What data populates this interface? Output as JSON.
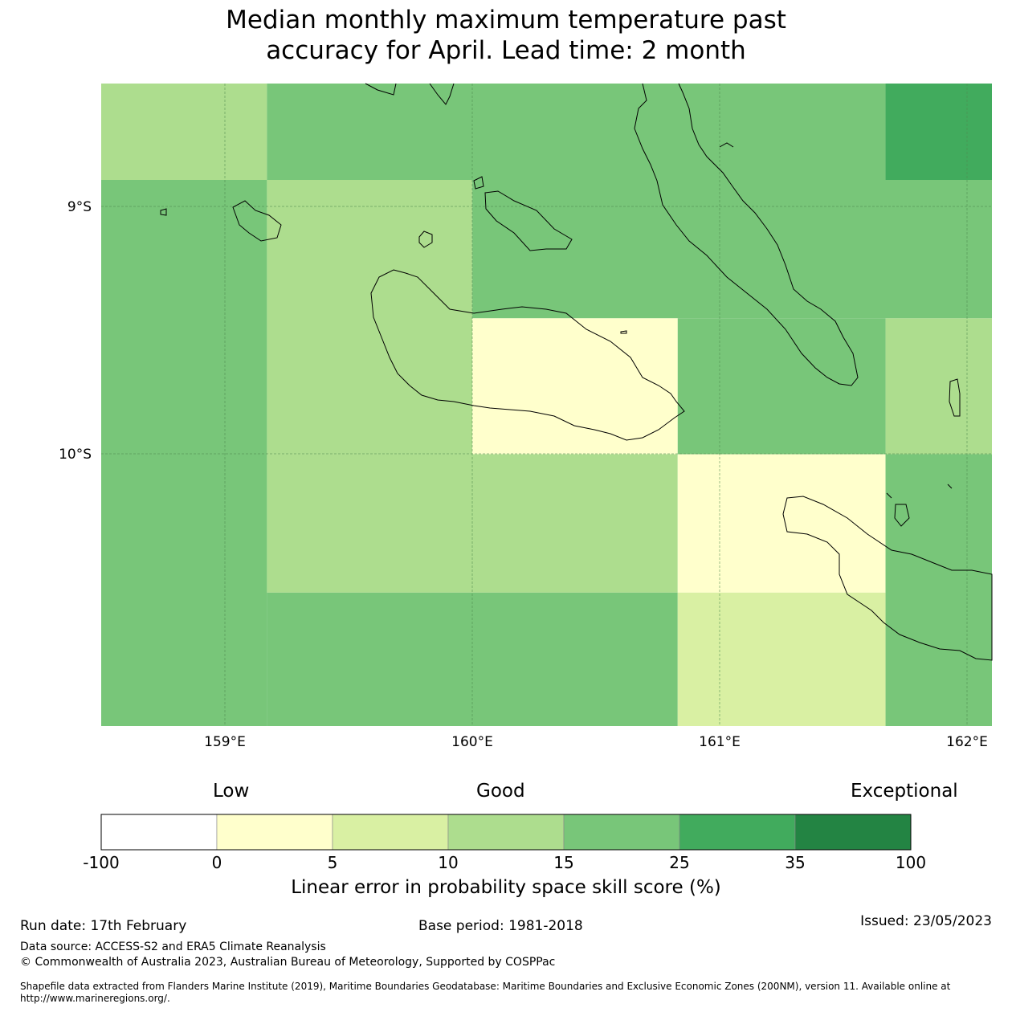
{
  "title_line1": "Median monthly maximum temperature past",
  "title_line2": "accuracy for April. Lead time: 2 month",
  "map": {
    "lat_labels": [
      "9°S",
      "10°S"
    ],
    "lon_labels": [
      "159°E",
      "160°E",
      "161°E",
      "162°E"
    ],
    "extent": {
      "lon_min": 158.5,
      "lon_max": 162.1,
      "lat_top": -8.5,
      "lat_bottom": -11.1
    },
    "cells": [
      {
        "lon0": 158.5,
        "lon1": 159.17,
        "lat0": -8.5,
        "lat1": -8.89,
        "cat": "10-15"
      },
      {
        "lon0": 159.17,
        "lon1": 161.67,
        "lat0": -8.5,
        "lat1": -8.89,
        "cat": "15-25"
      },
      {
        "lon0": 161.67,
        "lon1": 162.1,
        "lat0": -8.5,
        "lat1": -8.89,
        "cat": "25-35"
      },
      {
        "lon0": 158.5,
        "lon1": 159.17,
        "lat0": -8.89,
        "lat1": -11.1,
        "cat": "15-25"
      },
      {
        "lon0": 159.17,
        "lon1": 160.0,
        "lat0": -8.89,
        "lat1": -10.0,
        "cat": "10-15"
      },
      {
        "lon0": 160.0,
        "lon1": 162.1,
        "lat0": -8.89,
        "lat1": -9.45,
        "cat": "15-25"
      },
      {
        "lon0": 160.0,
        "lon1": 160.83,
        "lat0": -9.45,
        "lat1": -10.0,
        "cat": "0-5"
      },
      {
        "lon0": 160.83,
        "lon1": 161.67,
        "lat0": -9.45,
        "lat1": -10.0,
        "cat": "15-25"
      },
      {
        "lon0": 161.67,
        "lon1": 162.1,
        "lat0": -9.45,
        "lat1": -10.0,
        "cat": "10-15"
      },
      {
        "lon0": 159.17,
        "lon1": 160.83,
        "lat0": -10.0,
        "lat1": -10.56,
        "cat": "10-15"
      },
      {
        "lon0": 160.83,
        "lon1": 161.67,
        "lat0": -10.0,
        "lat1": -10.56,
        "cat": "0-5"
      },
      {
        "lon0": 161.67,
        "lon1": 162.1,
        "lat0": -10.0,
        "lat1": -11.1,
        "cat": "15-25"
      },
      {
        "lon0": 159.17,
        "lon1": 160.83,
        "lat0": -10.56,
        "lat1": -11.1,
        "cat": "15-25"
      },
      {
        "lon0": 160.83,
        "lon1": 161.67,
        "lat0": -10.56,
        "lat1": -11.1,
        "cat": "5-10"
      }
    ]
  },
  "colorbar": {
    "categories": [
      "Low",
      "Good",
      "Exceptional"
    ],
    "ticks": [
      "-100",
      "0",
      "5",
      "10",
      "15",
      "25",
      "35",
      "100"
    ],
    "colors": [
      "#ffffff",
      "#ffffcc",
      "#d9f0a3",
      "#addd8e",
      "#78c679",
      "#41ab5d",
      "#238443"
    ],
    "bin_keys": [
      "-100-0",
      "0-5",
      "5-10",
      "10-15",
      "15-25",
      "25-35",
      "35-100"
    ],
    "label": "Linear error in probability space skill score (%)"
  },
  "footer": {
    "run_date": "Run date: 17th February",
    "base_period": "Base period: 1981-2018",
    "issued": "Issued: 23/05/2023",
    "data_source": "Data source: ACCESS-S2 and ERA5 Climate Reanalysis",
    "copyright": "© Commonwealth of Australia 2023, Australian Bureau of Meteorology, Supported by COSPPac",
    "shapefile": "Shapefile data extracted from Flanders Marine Institute (2019), Maritime Boundaries Geodatabase: Maritime Boundaries and Exclusive Economic Zones (200NM), version 11. Available online at http://www.marineregions.org/."
  }
}
